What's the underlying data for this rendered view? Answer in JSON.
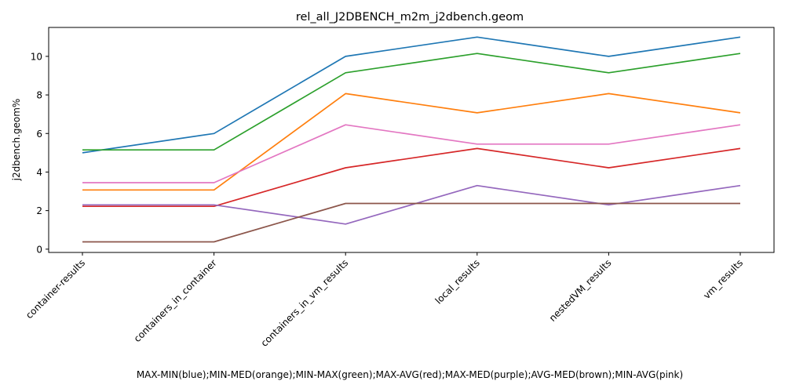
{
  "chart_data": {
    "type": "line",
    "title": "rel_all_J2DBENCH_m2m_j2dbench.geom",
    "xlabel": "MAX-MIN(blue);MIN-MED(orange);MIN-MAX(green);MAX-AVG(red);MAX-MED(purple);AVG-MED(brown);MIN-AVG(pink)",
    "ylabel": "j2dbench.geom%",
    "categories": [
      "container-results",
      "containers_in_container",
      "containers_in_vm_results",
      "local_results",
      "nestedVM_results",
      "vm_results"
    ],
    "yticks": [
      "0",
      "2",
      "4",
      "6",
      "8",
      "10"
    ],
    "ylim": [
      -0.17,
      11.5
    ],
    "grid": false,
    "legend": "none",
    "series": [
      {
        "color": "#1f77b4",
        "values": [
          5.0,
          6.0,
          10.0,
          11.0,
          10.0,
          11.0
        ]
      },
      {
        "color": "#ff7f0e",
        "values": [
          3.07,
          3.07,
          8.07,
          7.07,
          8.07,
          7.07
        ]
      },
      {
        "color": "#2ca02c",
        "values": [
          5.15,
          5.15,
          9.15,
          10.15,
          9.15,
          10.15
        ]
      },
      {
        "color": "#d62728",
        "values": [
          2.22,
          2.22,
          4.22,
          5.22,
          4.22,
          5.22
        ]
      },
      {
        "color": "#9467bd",
        "values": [
          2.3,
          2.3,
          1.3,
          3.3,
          2.3,
          3.3
        ]
      },
      {
        "color": "#8c564b",
        "values": [
          0.38,
          0.38,
          2.37,
          2.37,
          2.37,
          2.37
        ]
      },
      {
        "color": "#e377c2",
        "values": [
          3.45,
          3.45,
          6.45,
          5.45,
          5.45,
          6.45
        ]
      }
    ]
  }
}
